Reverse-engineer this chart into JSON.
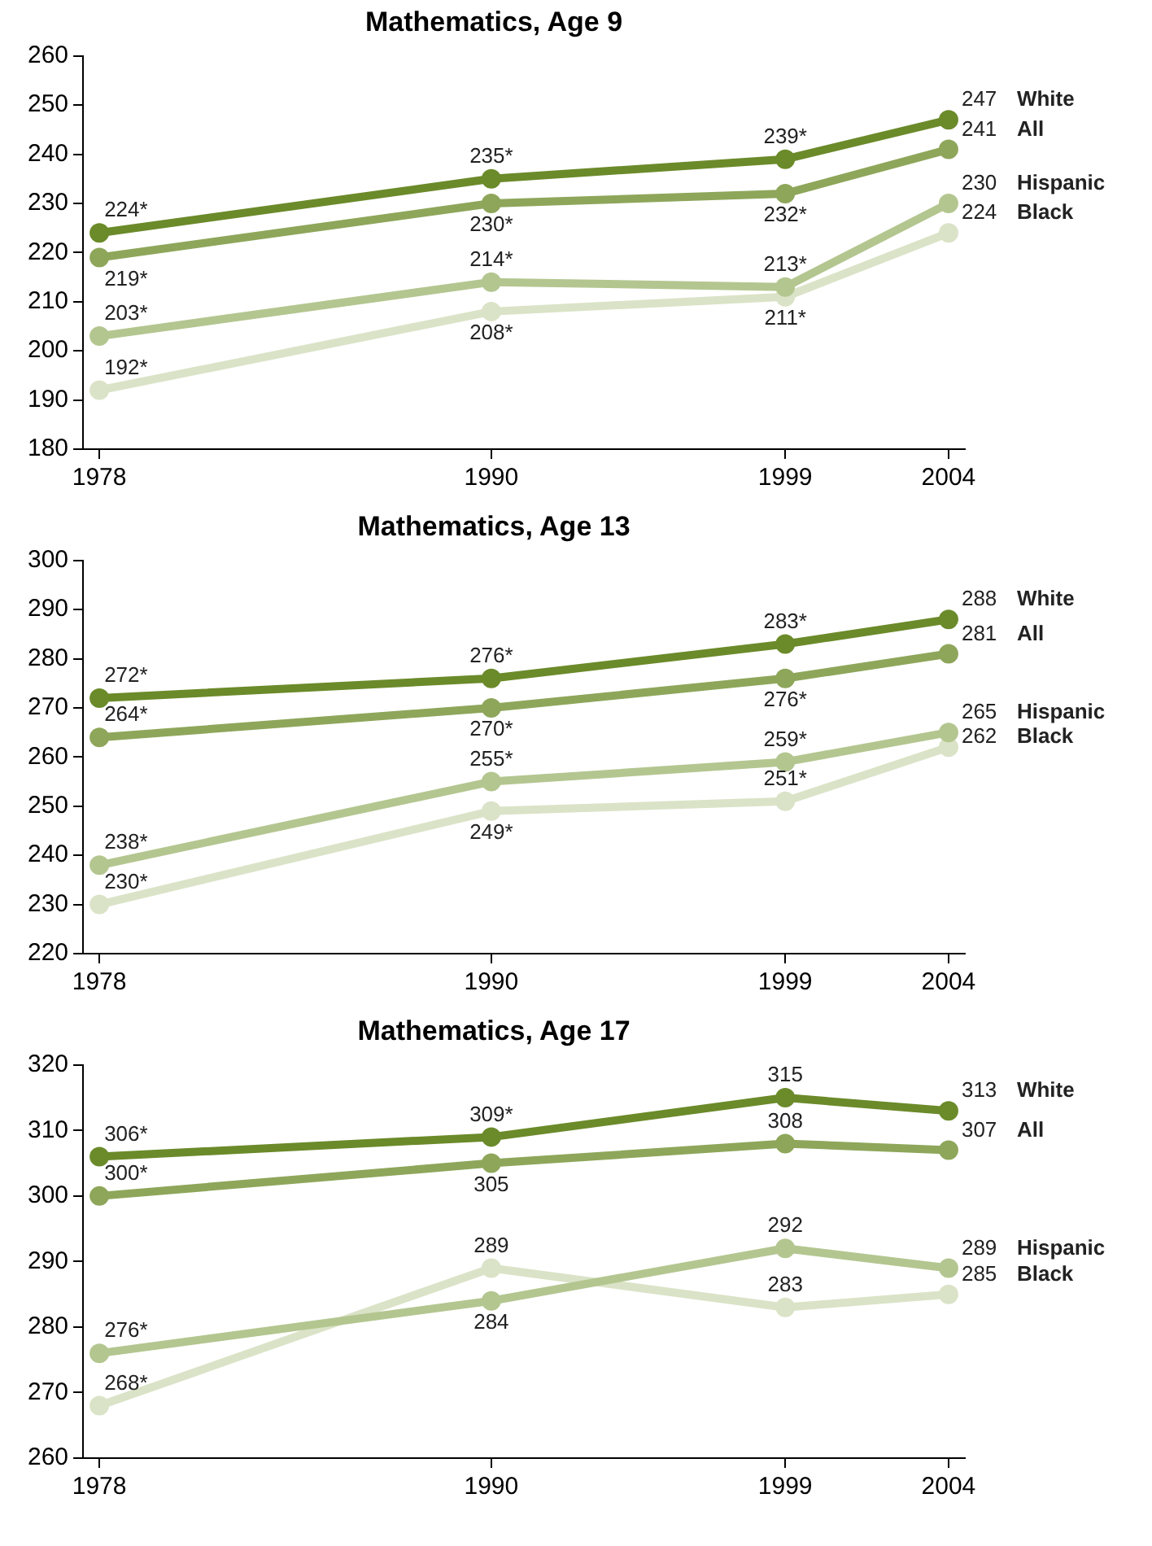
{
  "chart_data": [
    {
      "type": "line",
      "title": "Mathematics, Age 9",
      "x": [
        1978,
        1990,
        1999,
        2004
      ],
      "xlim": [
        1977.5,
        2004.5
      ],
      "xticks": [
        1978,
        1990,
        1999,
        2004
      ],
      "ylim": [
        180,
        260
      ],
      "yticks": [
        180,
        190,
        200,
        210,
        220,
        230,
        240,
        250,
        260
      ],
      "marker": "circle",
      "series": [
        {
          "name": "White",
          "color": "#6b8a2a",
          "values": [
            224,
            235,
            239,
            247
          ],
          "value_labels": [
            "224*",
            "235*",
            "239*",
            "247"
          ]
        },
        {
          "name": "All",
          "color": "#8ea65a",
          "values": [
            219,
            230,
            232,
            241
          ],
          "value_labels": [
            "219*",
            "230*",
            "232*",
            "241"
          ]
        },
        {
          "name": "Hispanic",
          "color": "#b4c690",
          "values": [
            203,
            214,
            213,
            230
          ],
          "value_labels": [
            "203*",
            "214*",
            "213*",
            "230"
          ]
        },
        {
          "name": "Black",
          "color": "#dae3c7",
          "values": [
            192,
            208,
            211,
            224
          ],
          "value_labels": [
            "192*",
            "208*",
            "211*",
            "224"
          ]
        }
      ]
    },
    {
      "type": "line",
      "title": "Mathematics, Age 13",
      "x": [
        1978,
        1990,
        1999,
        2004
      ],
      "xlim": [
        1977.5,
        2004.5
      ],
      "xticks": [
        1978,
        1990,
        1999,
        2004
      ],
      "ylim": [
        220,
        300
      ],
      "yticks": [
        220,
        230,
        240,
        250,
        260,
        270,
        280,
        290,
        300
      ],
      "marker": "circle",
      "series": [
        {
          "name": "White",
          "color": "#6b8a2a",
          "values": [
            272,
            276,
            283,
            288
          ],
          "value_labels": [
            "272*",
            "276*",
            "283*",
            "288"
          ]
        },
        {
          "name": "All",
          "color": "#8ea65a",
          "values": [
            264,
            270,
            276,
            281
          ],
          "value_labels": [
            "264*",
            "270*",
            "276*",
            "281"
          ]
        },
        {
          "name": "Hispanic",
          "color": "#b4c690",
          "values": [
            238,
            255,
            259,
            265
          ],
          "value_labels": [
            "238*",
            "255*",
            "259*",
            "265"
          ]
        },
        {
          "name": "Black",
          "color": "#dae3c7",
          "values": [
            230,
            249,
            251,
            262
          ],
          "value_labels": [
            "230*",
            "249*",
            "251*",
            "262"
          ]
        }
      ]
    },
    {
      "type": "line",
      "title": "Mathematics, Age 17",
      "x": [
        1978,
        1990,
        1999,
        2004
      ],
      "xlim": [
        1977.5,
        2004.5
      ],
      "xticks": [
        1978,
        1990,
        1999,
        2004
      ],
      "ylim": [
        260,
        320
      ],
      "yticks": [
        260,
        270,
        280,
        290,
        300,
        310,
        320
      ],
      "marker": "circle",
      "series": [
        {
          "name": "White",
          "color": "#6b8a2a",
          "values": [
            306,
            309,
            315,
            313
          ],
          "value_labels": [
            "306*",
            "309*",
            "315",
            "313"
          ]
        },
        {
          "name": "All",
          "color": "#8ea65a",
          "values": [
            300,
            305,
            308,
            307
          ],
          "value_labels": [
            "300*",
            "305",
            "308",
            "307"
          ]
        },
        {
          "name": "Hispanic",
          "color": "#b4c690",
          "values": [
            276,
            284,
            292,
            289
          ],
          "value_labels": [
            "276*",
            "284",
            "292",
            "289"
          ]
        },
        {
          "name": "Black",
          "color": "#dae3c7",
          "values": [
            268,
            289,
            283,
            285
          ],
          "value_labels": [
            "268*",
            "289",
            "283",
            "285"
          ]
        }
      ]
    }
  ]
}
